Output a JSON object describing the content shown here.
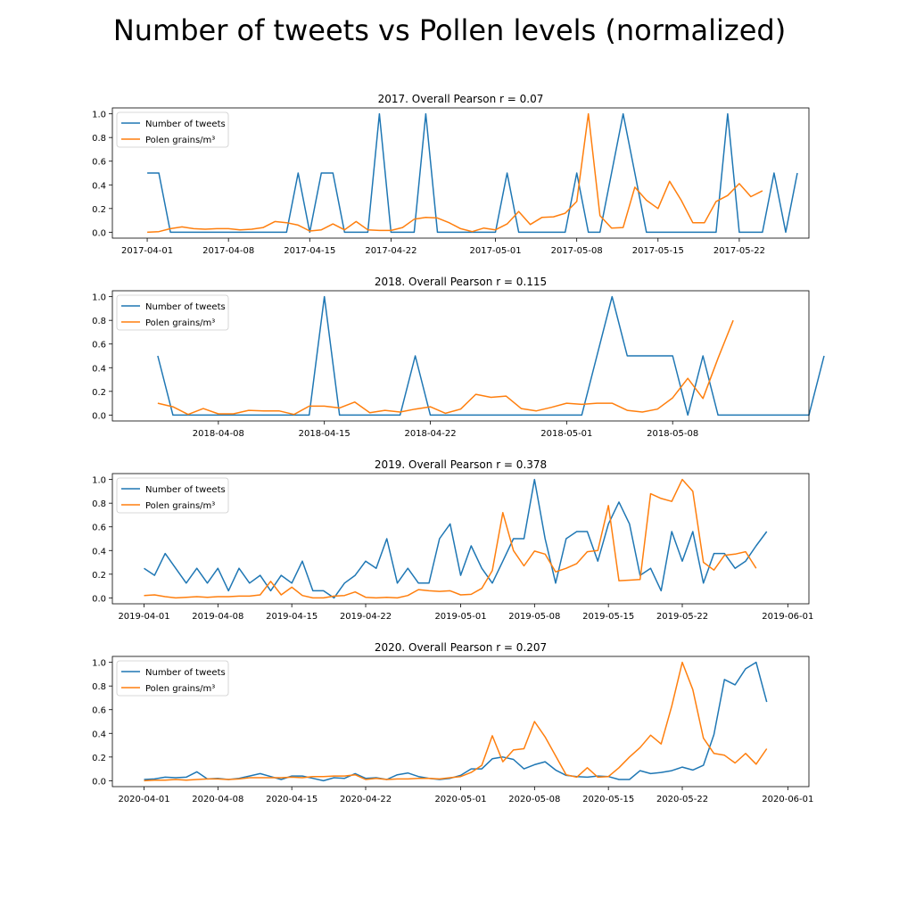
{
  "figure": {
    "title": "Number of tweets vs Pollen levels (normalized)",
    "colors": {
      "tweets": "#1f77b4",
      "pollen": "#ff7f0e"
    }
  },
  "chart_data": [
    {
      "type": "line",
      "title": "2017. Overall Pearson r = 0.07",
      "xlabel": "",
      "ylabel": "",
      "x_start": "2017-04-01",
      "xlim": [
        "2017-03-29",
        "2017-05-28"
      ],
      "ylim": [
        -0.05,
        1.05
      ],
      "yticks": [
        0.0,
        0.2,
        0.4,
        0.6,
        0.8,
        1.0
      ],
      "xticks": [
        "2017-04-01",
        "2017-04-08",
        "2017-04-15",
        "2017-04-22",
        "2017-05-01",
        "2017-05-08",
        "2017-05-15",
        "2017-05-22"
      ],
      "legend": "top-left",
      "series": [
        {
          "name": "Number of tweets",
          "color": "#1f77b4",
          "values": [
            0.5,
            0.5,
            0,
            0,
            0,
            0,
            0,
            0,
            0,
            0,
            0,
            0,
            0,
            0.5,
            0,
            0.5,
            0.5,
            0,
            0,
            0,
            1.0,
            0,
            0,
            0,
            1.0,
            0,
            0,
            0,
            0,
            0,
            0,
            0.5,
            0,
            0,
            0,
            0,
            0,
            0.5,
            0,
            0,
            0.5,
            1.0,
            0.5,
            0,
            0,
            0,
            0,
            0,
            0,
            0,
            1.0,
            0,
            0,
            0,
            0.5,
            0,
            0.5
          ]
        },
        {
          "name": "Polen grains/m³",
          "color": "#ff7f0e",
          "values": [
            0,
            0.005,
            0.03,
            0.045,
            0.03,
            0.025,
            0.03,
            0.03,
            0.02,
            0.025,
            0.04,
            0.09,
            0.08,
            0.06,
            0.01,
            0.02,
            0.07,
            0.02,
            0.09,
            0.02,
            0.015,
            0.015,
            0.04,
            0.11,
            0.125,
            0.12,
            0.08,
            0.03,
            0.005,
            0.035,
            0.02,
            0.07,
            0.175,
            0.065,
            0.125,
            0.13,
            0.16,
            0.26,
            1.0,
            0.14,
            0.035,
            0.04,
            0.38,
            0.27,
            0.2,
            0.43,
            0.27,
            0.08,
            0.08,
            0.26,
            0.31,
            0.41,
            0.3,
            0.35
          ]
        }
      ]
    },
    {
      "type": "line",
      "title": "2018. Overall Pearson r = 0.115",
      "xlabel": "",
      "ylabel": "",
      "x_start": "2018-04-04",
      "xlim": [
        "2018-04-01",
        "2018-05-17"
      ],
      "ylim": [
        -0.05,
        1.05
      ],
      "yticks": [
        0.0,
        0.2,
        0.4,
        0.6,
        0.8,
        1.0
      ],
      "xticks": [
        "2018-04-08",
        "2018-04-15",
        "2018-04-22",
        "2018-05-01",
        "2018-05-08"
      ],
      "legend": "top-left",
      "series": [
        {
          "name": "Number of tweets",
          "color": "#1f77b4",
          "values": [
            0.5,
            0,
            0,
            0,
            0,
            0,
            0,
            0,
            0,
            0,
            0,
            1.0,
            0,
            0,
            0,
            0,
            0,
            0.5,
            0,
            0,
            0,
            0,
            0,
            0,
            0,
            0,
            0,
            0,
            0,
            0.5,
            1.0,
            0.5,
            0.5,
            0.5,
            0.5,
            0,
            0.5,
            0,
            0,
            0,
            0,
            0,
            0,
            0,
            0.5
          ]
        },
        {
          "name": "Polen grains/m³",
          "color": "#ff7f0e",
          "values": [
            0.1,
            0.07,
            0.005,
            0.055,
            0.01,
            0.01,
            0.04,
            0.035,
            0.035,
            0.005,
            0.075,
            0.075,
            0.06,
            0.11,
            0.02,
            0.04,
            0.025,
            0.05,
            0.07,
            0.015,
            0.05,
            0.175,
            0.15,
            0.16,
            0.055,
            0.035,
            0.065,
            0.1,
            0.09,
            0.1,
            0.1,
            0.04,
            0.025,
            0.05,
            0.145,
            0.31,
            0.14,
            0.48,
            0.8
          ]
        }
      ]
    },
    {
      "type": "line",
      "title": "2019. Overall Pearson r = 0.378",
      "xlabel": "",
      "ylabel": "",
      "x_start": "2019-04-01",
      "xlim": [
        "2019-03-29",
        "2019-06-03"
      ],
      "ylim": [
        -0.05,
        1.05
      ],
      "yticks": [
        0.0,
        0.2,
        0.4,
        0.6,
        0.8,
        1.0
      ],
      "xticks": [
        "2019-04-01",
        "2019-04-08",
        "2019-04-15",
        "2019-04-22",
        "2019-05-01",
        "2019-05-08",
        "2019-05-15",
        "2019-05-22",
        "2019-06-01"
      ],
      "legend": "top-left",
      "series": [
        {
          "name": "Number of tweets",
          "color": "#1f77b4",
          "values": [
            0.25,
            0.19,
            0.375,
            0.25,
            0.125,
            0.25,
            0.125,
            0.25,
            0.06,
            0.25,
            0.125,
            0.19,
            0.06,
            0.19,
            0.125,
            0.31,
            0.06,
            0.06,
            0,
            0.125,
            0.19,
            0.31,
            0.25,
            0.5,
            0.125,
            0.25,
            0.125,
            0.125,
            0.5,
            0.625,
            0.19,
            0.44,
            0.25,
            0.125,
            0.31,
            0.5,
            0.5,
            1.0,
            0.5,
            0.125,
            0.5,
            0.56,
            0.56,
            0.31,
            0.625,
            0.81,
            0.625,
            0.19,
            0.25,
            0.06,
            0.56,
            0.31,
            0.56,
            0.125,
            0.375,
            0.375,
            0.25,
            0.31,
            0.44,
            0.56
          ]
        },
        {
          "name": "Polen grains/m³",
          "color": "#ff7f0e",
          "values": [
            0.02,
            0.025,
            0.01,
            0,
            0.005,
            0.01,
            0.005,
            0.01,
            0.01,
            0.015,
            0.015,
            0.025,
            0.14,
            0.025,
            0.09,
            0.02,
            0,
            0,
            0.015,
            0.02,
            0.05,
            0.005,
            0,
            0.005,
            0,
            0.02,
            0.07,
            0.06,
            0.055,
            0.06,
            0.025,
            0.03,
            0.08,
            0.23,
            0.72,
            0.4,
            0.27,
            0.395,
            0.37,
            0.22,
            0.25,
            0.29,
            0.39,
            0.4,
            0.78,
            0.145,
            0.15,
            0.155,
            0.88,
            0.84,
            0.815,
            1.0,
            0.9,
            0.3,
            0.235,
            0.36,
            0.37,
            0.39,
            0.25
          ]
        }
      ]
    },
    {
      "type": "line",
      "title": "2020. Overall Pearson r = 0.207",
      "xlabel": "",
      "ylabel": "",
      "x_start": "2020-04-01",
      "xlim": [
        "2020-03-29",
        "2020-06-03"
      ],
      "ylim": [
        -0.05,
        1.05
      ],
      "yticks": [
        0.0,
        0.2,
        0.4,
        0.6,
        0.8,
        1.0
      ],
      "xticks": [
        "2020-04-01",
        "2020-04-08",
        "2020-04-15",
        "2020-04-22",
        "2020-05-01",
        "2020-05-08",
        "2020-05-15",
        "2020-05-22",
        "2020-06-01"
      ],
      "legend": "top-left",
      "series": [
        {
          "name": "Number of tweets",
          "color": "#1f77b4",
          "values": [
            0.01,
            0.015,
            0.03,
            0.025,
            0.03,
            0.075,
            0.015,
            0.02,
            0.01,
            0.02,
            0.04,
            0.06,
            0.035,
            0.01,
            0.04,
            0.04,
            0.02,
            0,
            0.025,
            0.02,
            0.06,
            0.02,
            0.025,
            0.01,
            0.05,
            0.065,
            0.035,
            0.02,
            0.01,
            0.02,
            0.045,
            0.1,
            0.1,
            0.185,
            0.2,
            0.18,
            0.1,
            0.135,
            0.16,
            0.09,
            0.045,
            0.035,
            0.03,
            0.04,
            0.035,
            0.01,
            0.01,
            0.085,
            0.06,
            0.07,
            0.085,
            0.115,
            0.09,
            0.13,
            0.39,
            0.855,
            0.81,
            0.945,
            1.0,
            0.665
          ]
        },
        {
          "name": "Polen grains/m³",
          "color": "#ff7f0e",
          "values": [
            0,
            0.005,
            0.005,
            0.01,
            0.005,
            0.01,
            0.015,
            0.015,
            0.01,
            0.015,
            0.025,
            0.025,
            0.025,
            0.025,
            0.03,
            0.025,
            0.035,
            0.035,
            0.04,
            0.04,
            0.05,
            0.01,
            0.02,
            0.01,
            0.015,
            0.015,
            0.02,
            0.02,
            0.015,
            0.025,
            0.035,
            0.07,
            0.13,
            0.38,
            0.16,
            0.26,
            0.27,
            0.5,
            0.37,
            0.21,
            0.05,
            0.03,
            0.11,
            0.03,
            0.035,
            0.11,
            0.2,
            0.28,
            0.385,
            0.31,
            0.63,
            1.0,
            0.77,
            0.36,
            0.23,
            0.215,
            0.15,
            0.23,
            0.14,
            0.27
          ]
        }
      ]
    }
  ]
}
